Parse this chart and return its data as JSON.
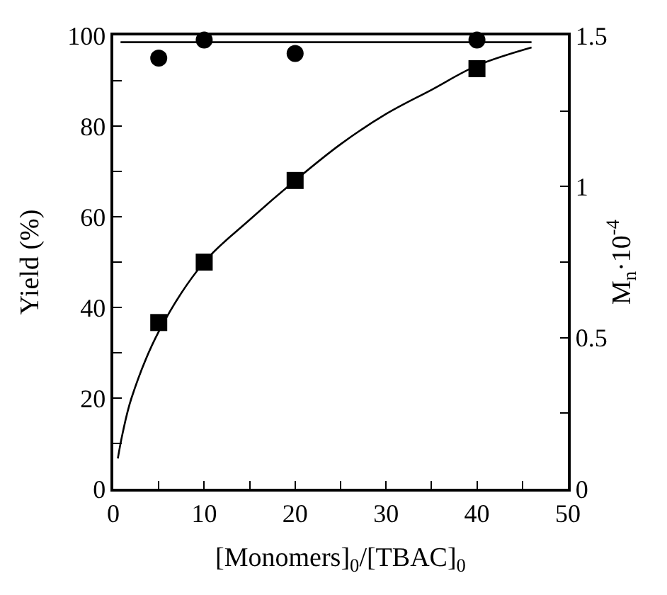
{
  "chart_data": {
    "type": "scatter",
    "xlabel": "[Monomers]$_{0}$/[TBAC]$_{0}$",
    "ylabel": "Yield (%)",
    "y2label": "M$_{n}$·10$^{-4}$",
    "xlim": [
      0,
      50
    ],
    "xticks": [
      0,
      {
        "value": 5,
        "label": null
      },
      10,
      {
        "value": 15,
        "label": null
      },
      20,
      {
        "value": 25,
        "label": null
      },
      30,
      {
        "value": 35,
        "label": null
      },
      40,
      {
        "value": 45,
        "label": null
      },
      50
    ],
    "ylim": [
      0,
      100
    ],
    "yticks": [
      0,
      {
        "value": 10,
        "label": null
      },
      20,
      {
        "value": 30,
        "label": null
      },
      40,
      {
        "value": 50,
        "label": null
      },
      60,
      {
        "value": 70,
        "label": null
      },
      80,
      {
        "value": 90,
        "label": null
      },
      100
    ],
    "y2lim": [
      0,
      1.5
    ],
    "y2ticks": [
      0,
      {
        "value": 0.25,
        "label": null
      },
      0.5,
      {
        "value": 0.75,
        "label": null
      },
      1,
      {
        "value": 1.25,
        "label": null
      },
      1.5
    ],
    "legend": false,
    "series": [
      {
        "marker": "circle",
        "color": "#000000",
        "x": [
          5,
          10,
          20,
          40
        ],
        "values": [
          95,
          99,
          96,
          99
        ]
      },
      {
        "marker": "square",
        "color": "#000000",
        "axis": "y2",
        "x": [
          5,
          10,
          20,
          40
        ],
        "values": [
          0.55,
          0.75,
          1.02,
          1.39
        ]
      },
      {
        "type": "line",
        "marker": "none",
        "line_style": "solid",
        "color": "#000000",
        "x": [
          0.8,
          46
        ],
        "values": [
          98.5,
          98.5
        ]
      },
      {
        "type": "line",
        "marker": "none",
        "line_style": "solid",
        "color": "#000000",
        "axis": "y2",
        "x": [
          0.5,
          1,
          2,
          5,
          10,
          15,
          20,
          25,
          30,
          35,
          40,
          46
        ],
        "values": [
          0.1,
          0.18,
          0.3,
          0.52,
          0.75,
          0.89,
          1.02,
          1.14,
          1.24,
          1.32,
          1.4,
          1.46
        ]
      }
    ]
  }
}
